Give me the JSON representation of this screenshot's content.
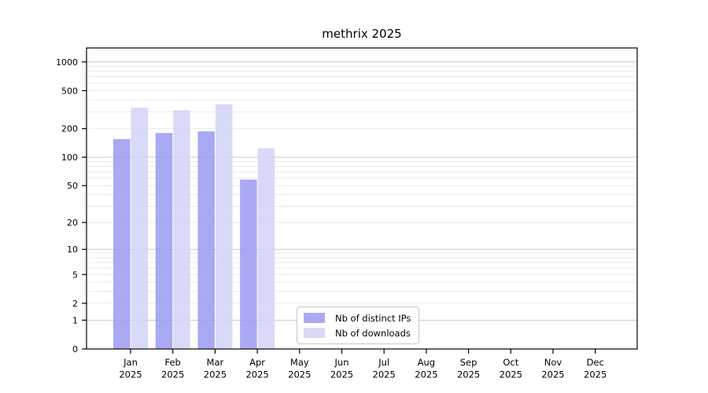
{
  "chart_data": {
    "type": "bar",
    "title": "methrix 2025",
    "categories": [
      "Jan",
      "Feb",
      "Mar",
      "Apr",
      "May",
      "Jun",
      "Jul",
      "Aug",
      "Sep",
      "Oct",
      "Nov",
      "Dec"
    ],
    "x_year_suffix": "2025",
    "series": [
      {
        "name": "Nb of distinct IPs",
        "color": "#9a9af2",
        "values": [
          155,
          180,
          187,
          58,
          null,
          null,
          null,
          null,
          null,
          null,
          null,
          null
        ]
      },
      {
        "name": "Nb of downloads",
        "color": "#d2d2f7",
        "values": [
          332,
          312,
          360,
          124,
          null,
          null,
          null,
          null,
          null,
          null,
          null,
          null
        ]
      }
    ],
    "y_scale": "log10(1+y)",
    "y_ticks": [
      0,
      1,
      2,
      5,
      10,
      20,
      50,
      100,
      200,
      500,
      1000
    ],
    "y_major_gridlines": [
      1,
      10,
      100,
      1000
    ],
    "ylim": [
      0,
      1400
    ],
    "grid": true,
    "legend_position": "inside-bottom-center",
    "colors": {
      "major_grid": "#c8c8c8",
      "minor_grid": "#eaeaea",
      "axis": "#000000",
      "text": "#000000",
      "background": "#ffffff"
    }
  }
}
